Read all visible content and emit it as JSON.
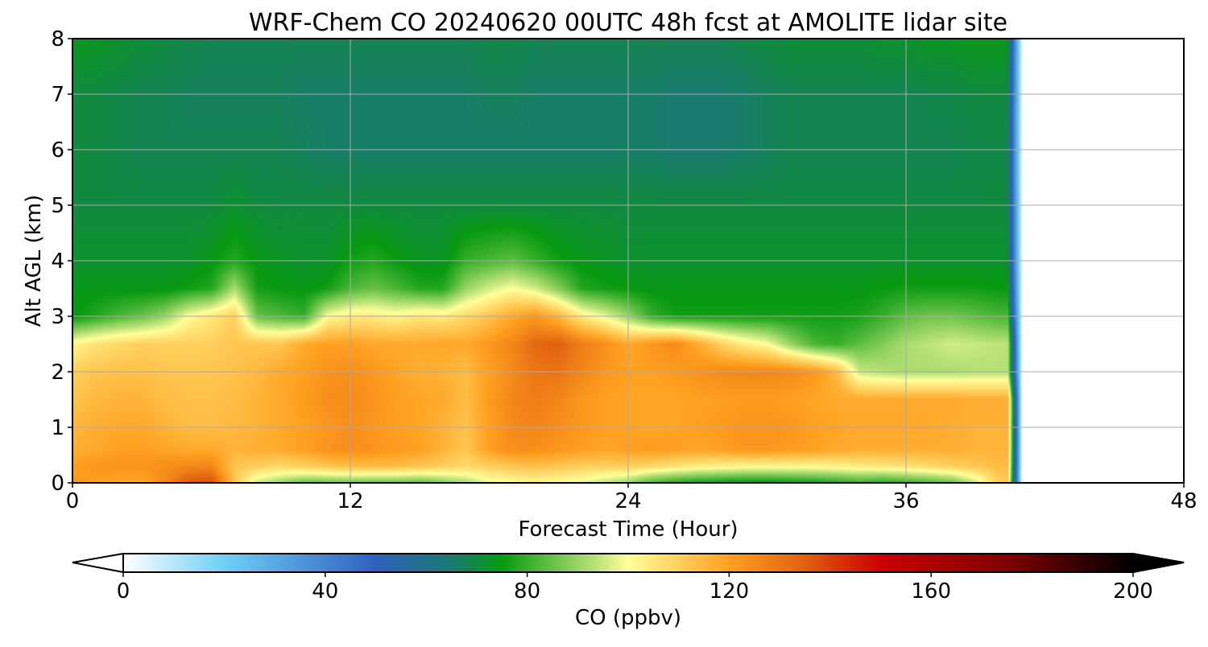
{
  "chart_data": {
    "type": "heatmap",
    "title": "WRF-Chem CO  20240620 00UTC 48h fcst at AMOLITE lidar site",
    "xlabel": "Forecast Time (Hour)",
    "ylabel": "Alt AGL (km)",
    "xlim": [
      0,
      48
    ],
    "ylim": [
      0,
      8
    ],
    "x_ticks": [
      0,
      12,
      24,
      36,
      48
    ],
    "y_ticks": [
      0,
      1,
      2,
      3,
      4,
      5,
      6,
      7,
      8
    ],
    "grid": true,
    "data_extent_hours": 41,
    "colorbar": {
      "label": "CO  (ppbv)",
      "range": [
        0,
        200
      ],
      "ticks": [
        0,
        40,
        80,
        120,
        160,
        200
      ],
      "extend": "both",
      "orientation": "horizontal",
      "stops": [
        {
          "value": 0,
          "color": "#ffffff"
        },
        {
          "value": 20,
          "color": "#6ecff6"
        },
        {
          "value": 50,
          "color": "#3060c0"
        },
        {
          "value": 65,
          "color": "#1a7a70"
        },
        {
          "value": 75,
          "color": "#079a10"
        },
        {
          "value": 95,
          "color": "#c8e880"
        },
        {
          "value": 100,
          "color": "#ffff9a"
        },
        {
          "value": 120,
          "color": "#ffa020"
        },
        {
          "value": 135,
          "color": "#e06010"
        },
        {
          "value": 150,
          "color": "#cc0000"
        },
        {
          "value": 175,
          "color": "#800000"
        },
        {
          "value": 200,
          "color": "#000000"
        }
      ]
    },
    "heights_km": [
      0,
      0.3,
      0.6,
      1.0,
      1.5,
      2.0,
      2.5,
      3.0,
      3.5,
      4.0,
      5.0,
      6.0,
      7.0,
      8.0
    ],
    "hours": [
      0,
      1,
      2,
      3,
      4,
      5,
      6,
      7,
      8,
      9,
      10,
      11,
      12,
      13,
      14,
      15,
      16,
      17,
      18,
      19,
      20,
      21,
      22,
      23,
      24,
      25,
      26,
      27,
      28,
      29,
      30,
      31,
      32,
      33,
      34,
      35,
      36,
      37,
      38,
      39,
      40,
      41
    ],
    "co_ppbv": [
      [
        122,
        120,
        118,
        118,
        125,
        136,
        138,
        112,
        95,
        90,
        85,
        85,
        86,
        85,
        85,
        84,
        88,
        92,
        98,
        100,
        102,
        100,
        98,
        94,
        90,
        82,
        78,
        76,
        75,
        74,
        74,
        75,
        76,
        78,
        80,
        78,
        80,
        82,
        85,
        95,
        110,
        112
      ],
      [
        120,
        122,
        123,
        123,
        124,
        125,
        126,
        112,
        110,
        108,
        110,
        112,
        114,
        114,
        114,
        112,
        110,
        108,
        110,
        112,
        113,
        112,
        110,
        110,
        110,
        108,
        106,
        104,
        103,
        102,
        102,
        102,
        102,
        103,
        104,
        105,
        106,
        108,
        110,
        112,
        114,
        114
      ],
      [
        117,
        118,
        120,
        120,
        119,
        118,
        118,
        116,
        117,
        118,
        120,
        123,
        124,
        123,
        121,
        120,
        116,
        112,
        120,
        124,
        124,
        122,
        120,
        119,
        120,
        121,
        120,
        119,
        120,
        122,
        122,
        121,
        120,
        118,
        117,
        117,
        117,
        117,
        117,
        116,
        116,
        116
      ],
      [
        115,
        117,
        118,
        118,
        116,
        114,
        114,
        115,
        116,
        118,
        120,
        122,
        124,
        122,
        120,
        119,
        116,
        113,
        120,
        125,
        126,
        124,
        122,
        120,
        119,
        119,
        119,
        120,
        121,
        123,
        123,
        122,
        120,
        119,
        118,
        118,
        118,
        118,
        117,
        116,
        116,
        116
      ],
      [
        112,
        115,
        116,
        116,
        114,
        113,
        113,
        114,
        116,
        118,
        121,
        124,
        125,
        123,
        120,
        119,
        118,
        114,
        121,
        126,
        128,
        126,
        122,
        120,
        119,
        119,
        119,
        120,
        120,
        121,
        121,
        120,
        119,
        118,
        118,
        118,
        118,
        118,
        118,
        117,
        117,
        117
      ],
      [
        110,
        112,
        113,
        113,
        112,
        112,
        112,
        113,
        115,
        118,
        120,
        123,
        124,
        122,
        119,
        117,
        116,
        114,
        120,
        125,
        130,
        130,
        126,
        122,
        120,
        120,
        121,
        123,
        125,
        126,
        126,
        125,
        122,
        115,
        95,
        93,
        92,
        92,
        92,
        93,
        93,
        93
      ],
      [
        102,
        106,
        108,
        110,
        110,
        110,
        110,
        112,
        112,
        112,
        118,
        120,
        120,
        118,
        118,
        118,
        119,
        118,
        122,
        126,
        133,
        135,
        128,
        124,
        118,
        122,
        125,
        118,
        110,
        104,
        100,
        90,
        82,
        80,
        84,
        88,
        92,
        94,
        96,
        95,
        94,
        93
      ],
      [
        74,
        78,
        82,
        85,
        90,
        100,
        105,
        110,
        85,
        82,
        80,
        100,
        104,
        104,
        102,
        105,
        104,
        108,
        112,
        118,
        122,
        115,
        104,
        98,
        90,
        80,
        76,
        76,
        76,
        76,
        76,
        76,
        76,
        76,
        77,
        80,
        84,
        86,
        86,
        84,
        82,
        82
      ],
      [
        74,
        74,
        74,
        74,
        74,
        76,
        78,
        92,
        76,
        75,
        74,
        76,
        82,
        85,
        82,
        78,
        78,
        90,
        96,
        100,
        96,
        88,
        78,
        76,
        75,
        74,
        74,
        74,
        74,
        74,
        74,
        74,
        74,
        74,
        74,
        75,
        76,
        76,
        76,
        76,
        75,
        75
      ],
      [
        72,
        72,
        72,
        72,
        72,
        72,
        74,
        78,
        74,
        73,
        72,
        72,
        76,
        78,
        75,
        73,
        73,
        80,
        82,
        84,
        80,
        76,
        74,
        73,
        72,
        72,
        72,
        72,
        72,
        72,
        72,
        72,
        72,
        72,
        72,
        72,
        72,
        72,
        72,
        72,
        72,
        72
      ],
      [
        70,
        70,
        70,
        70,
        70,
        70,
        70,
        72,
        70,
        70,
        70,
        70,
        70,
        70,
        70,
        70,
        70,
        70,
        70,
        70,
        70,
        70,
        70,
        70,
        70,
        70,
        70,
        70,
        70,
        70,
        70,
        70,
        70,
        70,
        70,
        70,
        70,
        70,
        70,
        70,
        70,
        70
      ],
      [
        70,
        70,
        69,
        68,
        68,
        68,
        68,
        68,
        68,
        68,
        67,
        66,
        66,
        66,
        66,
        66,
        66,
        66,
        66,
        66,
        66,
        66,
        66,
        66,
        66,
        66,
        65,
        65,
        65,
        66,
        67,
        68,
        68,
        68,
        68,
        68,
        68,
        68,
        68,
        69,
        69,
        69
      ],
      [
        70,
        70,
        69,
        68,
        68,
        67,
        67,
        67,
        67,
        67,
        66,
        66,
        66,
        66,
        66,
        66,
        66,
        66,
        67,
        67,
        66,
        66,
        66,
        66,
        66,
        66,
        65,
        65,
        65,
        66,
        67,
        68,
        68,
        68,
        68,
        68,
        68,
        69,
        69,
        70,
        70,
        70
      ],
      [
        74,
        73,
        72,
        71,
        70,
        69,
        68,
        68,
        68,
        68,
        68,
        68,
        68,
        68,
        68,
        68,
        68,
        68,
        69,
        69,
        68,
        68,
        68,
        68,
        68,
        68,
        68,
        68,
        68,
        69,
        70,
        71,
        71,
        71,
        71,
        72,
        72,
        73,
        73,
        74,
        74,
        74
      ]
    ]
  }
}
